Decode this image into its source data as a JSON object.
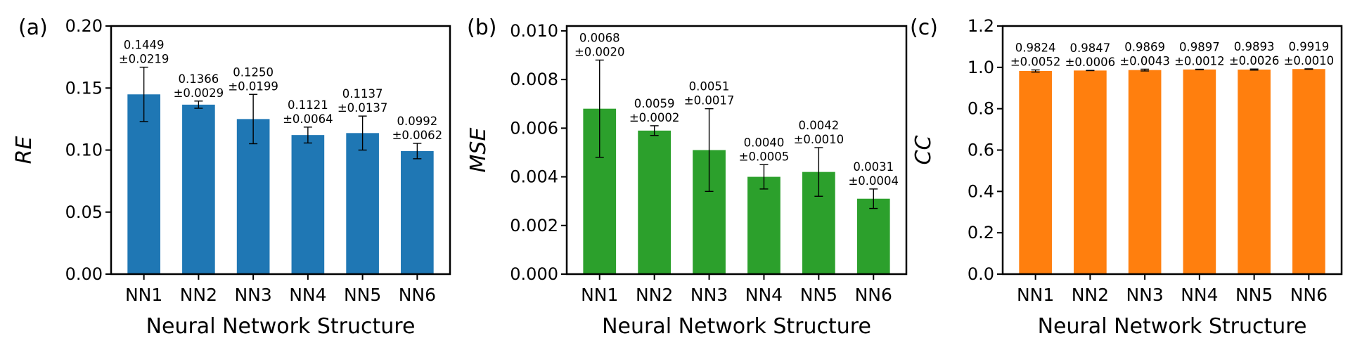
{
  "chart_data": [
    {
      "panel_label": "(a)",
      "type": "bar",
      "color": "#1f77b4",
      "categories": [
        "NN1",
        "NN2",
        "NN3",
        "NN4",
        "NN5",
        "NN6"
      ],
      "values": [
        0.1449,
        0.1366,
        0.125,
        0.1121,
        0.1137,
        0.0992
      ],
      "errors": [
        0.0219,
        0.0029,
        0.0199,
        0.0064,
        0.0137,
        0.0062
      ],
      "value_labels": [
        "0.1449",
        "0.1366",
        "0.1250",
        "0.1121",
        "0.1137",
        "0.0992"
      ],
      "error_labels": [
        "±0.0219",
        "±0.0029",
        "±0.0199",
        "±0.0064",
        "±0.0137",
        "±0.0062"
      ],
      "xlabel": "Neural Network Structure",
      "ylabel": "RE",
      "ylim": [
        0,
        0.2
      ],
      "yticks": [
        0,
        0.05,
        0.1,
        0.15,
        0.2
      ],
      "ytick_labels": [
        "0.00",
        "0.05",
        "0.10",
        "0.15",
        "0.20"
      ],
      "grid": false
    },
    {
      "panel_label": "(b)",
      "type": "bar",
      "color": "#2ca02c",
      "categories": [
        "NN1",
        "NN2",
        "NN3",
        "NN4",
        "NN5",
        "NN6"
      ],
      "values": [
        0.0068,
        0.0059,
        0.0051,
        0.004,
        0.0042,
        0.0031
      ],
      "errors": [
        0.002,
        0.0002,
        0.0017,
        0.0005,
        0.001,
        0.0004
      ],
      "value_labels": [
        "0.0068",
        "0.0059",
        "0.0051",
        "0.0040",
        "0.0042",
        "0.0031"
      ],
      "error_labels": [
        "±0.0020",
        "±0.0002",
        "±0.0017",
        "±0.0005",
        "±0.0010",
        "±0.0004"
      ],
      "xlabel": "Neural Network Structure",
      "ylabel": "MSE",
      "ylim": [
        0,
        0.0102
      ],
      "yticks": [
        0,
        0.002,
        0.004,
        0.006,
        0.008,
        0.01
      ],
      "ytick_labels": [
        "0.000",
        "0.002",
        "0.004",
        "0.006",
        "0.008",
        "0.010"
      ],
      "grid": false
    },
    {
      "panel_label": "(c)",
      "type": "bar",
      "color": "#ff7f0e",
      "categories": [
        "NN1",
        "NN2",
        "NN3",
        "NN4",
        "NN5",
        "NN6"
      ],
      "values": [
        0.9824,
        0.9847,
        0.9869,
        0.9897,
        0.9893,
        0.9919
      ],
      "errors": [
        0.0052,
        0.0006,
        0.0043,
        0.0012,
        0.0026,
        0.001
      ],
      "value_labels": [
        "0.9824",
        "0.9847",
        "0.9869",
        "0.9897",
        "0.9893",
        "0.9919"
      ],
      "error_labels": [
        "±0.0052",
        "±0.0006",
        "±0.0043",
        "±0.0012",
        "±0.0026",
        "±0.0010"
      ],
      "xlabel": "Neural Network Structure",
      "ylabel": "CC",
      "ylim": [
        0,
        1.2
      ],
      "yticks": [
        0,
        0.2,
        0.4,
        0.6,
        0.8,
        1.0,
        1.2
      ],
      "ytick_labels": [
        "0.0",
        "0.2",
        "0.4",
        "0.6",
        "0.8",
        "1.0",
        "1.2"
      ],
      "grid": false
    }
  ]
}
